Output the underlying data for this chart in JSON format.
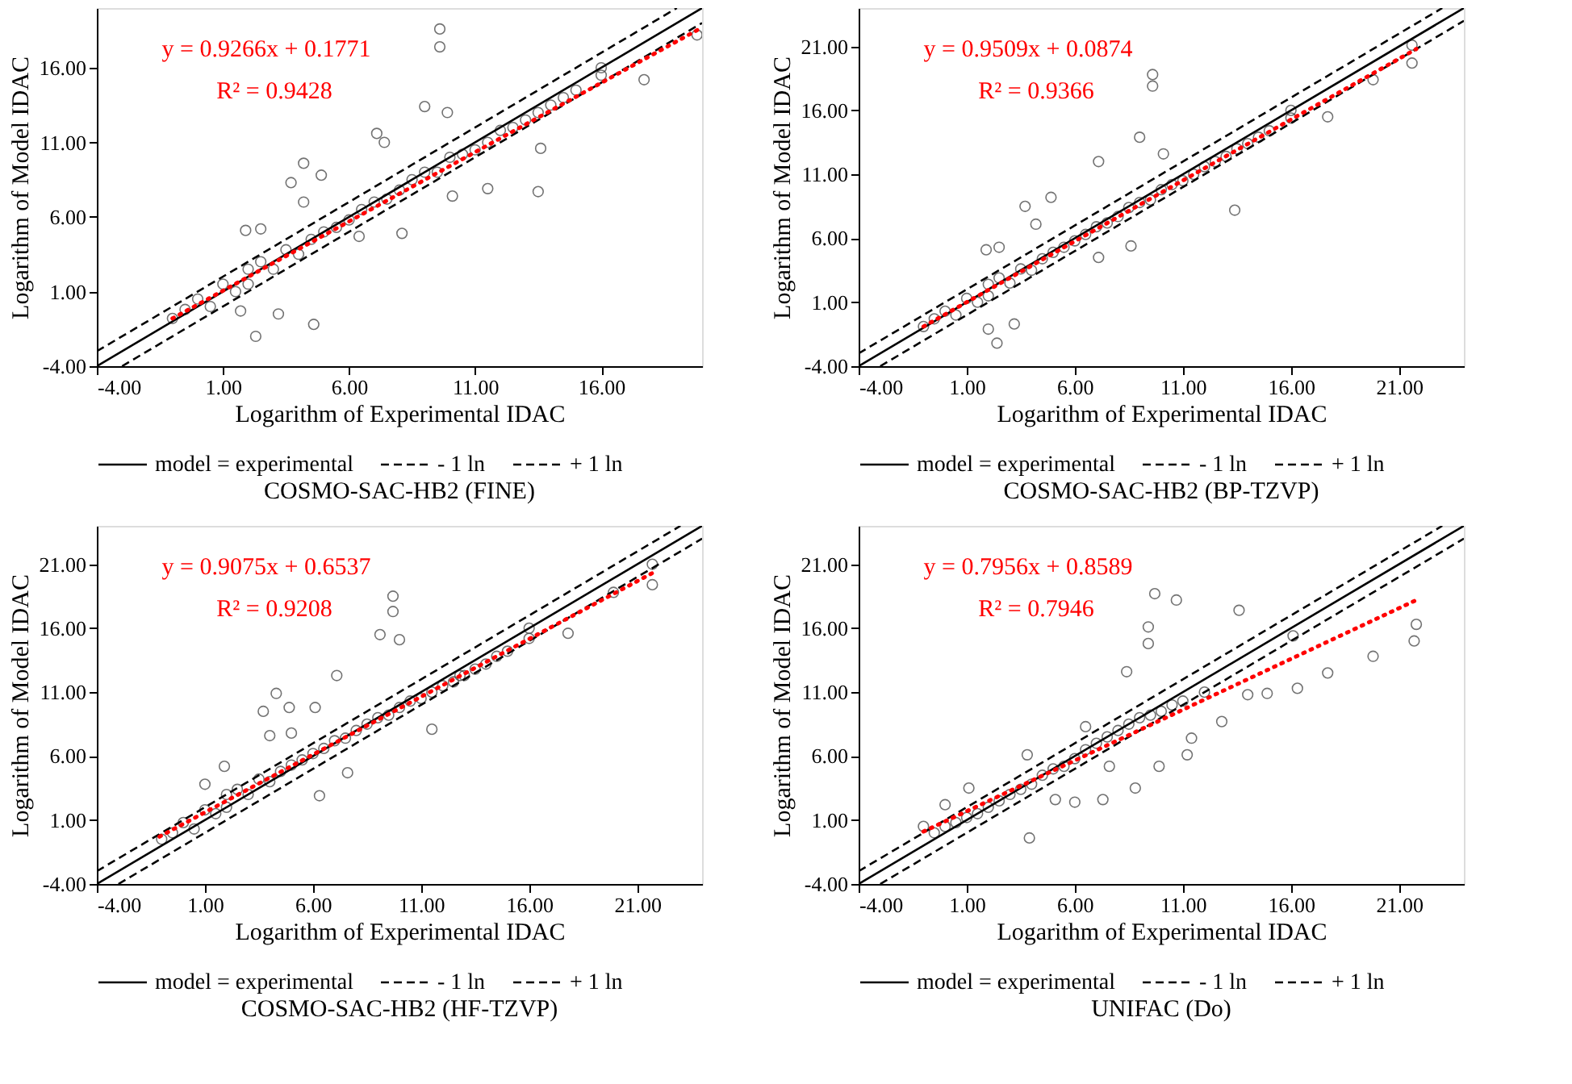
{
  "chart_data": [
    {
      "type": "scatter",
      "title": "COSMO-SAC-HB2 (FINE)",
      "xlabel": "Logarithm of Experimental IDAC",
      "ylabel": "Logarithm of Model IDAC",
      "annotations": [
        "y = 0.9266x + 0.1771",
        "R² = 0.9428"
      ],
      "legend": "bottom",
      "grid": false,
      "xlim": [
        -4,
        20
      ],
      "ylim": [
        -4,
        20
      ],
      "xticks": [
        {
          "value": -4,
          "label": "-4.00"
        },
        {
          "value": 1,
          "label": "1.00"
        },
        {
          "value": 6,
          "label": "6.00"
        },
        {
          "value": 11,
          "label": "11.00"
        },
        {
          "value": 16,
          "label": "16.00"
        }
      ],
      "yticks": [
        {
          "value": -4,
          "label": "-4.00"
        },
        {
          "value": 1,
          "label": "1.00"
        },
        {
          "value": 6,
          "label": "6.00"
        },
        {
          "value": 11,
          "label": "11.00"
        },
        {
          "value": 16,
          "label": "16.00"
        }
      ],
      "series": [
        {
          "color": "#444444",
          "marker": "circle",
          "x": [
            -1,
            -0.5,
            0,
            0.5,
            1,
            1.5,
            2,
            2,
            2.5,
            3,
            3.5,
            4,
            4.5,
            5,
            5.5,
            6,
            6.5,
            7,
            7.5,
            8,
            8.5,
            9,
            9.5,
            10,
            10.5,
            11,
            11.5,
            12,
            12.5,
            13,
            13.5,
            14,
            14.5,
            15,
            16,
            16,
            9.6,
            9.6,
            9.0,
            9.9,
            7.1,
            7.4,
            4.2,
            4.9,
            3.7,
            4.2,
            1.9,
            2.5,
            1.7,
            3.2,
            2.3,
            4.6,
            6.4,
            8.1,
            10.1,
            11.5,
            13.5,
            13.6,
            17.7,
            19.8
          ],
          "values": [
            -0.8,
            -0.2,
            0.5,
            0,
            1.5,
            1,
            2.5,
            1.5,
            3,
            2.5,
            3.8,
            3.5,
            4.5,
            5,
            5.3,
            5.8,
            6.5,
            7,
            7.2,
            7.8,
            8.5,
            9,
            9,
            10,
            10.2,
            10.5,
            11,
            11.8,
            12,
            12.5,
            13,
            13.5,
            14,
            14.5,
            15.5,
            16,
            18.6,
            17.4,
            13.4,
            13.0,
            11.6,
            11.0,
            9.6,
            8.8,
            8.3,
            7.0,
            5.1,
            5.2,
            -0.3,
            -0.5,
            -2.0,
            -1.2,
            4.7,
            4.9,
            7.4,
            7.9,
            7.7,
            10.6,
            15.2,
            18.2
          ]
        },
        {
          "type": "line",
          "name": "model = experimental",
          "color": "#000000",
          "line_style": "solid",
          "marker": "none",
          "x": [
            -4,
            20
          ],
          "values": [
            -4,
            20
          ]
        },
        {
          "type": "line",
          "name": "- 1 ln",
          "color": "#000000",
          "line_style": "dashed",
          "marker": "none",
          "x": [
            -3,
            20
          ],
          "values": [
            -4,
            19
          ]
        },
        {
          "type": "line",
          "name": "+ 1 ln",
          "color": "#000000",
          "line_style": "dashed",
          "marker": "none",
          "x": [
            -4,
            19
          ],
          "values": [
            -3,
            20
          ]
        },
        {
          "type": "line",
          "color": "#ff0000",
          "line_style": "dotted",
          "marker": "none",
          "x": [
            -1,
            20
          ],
          "values": [
            -0.8,
            18.7
          ]
        }
      ]
    },
    {
      "type": "scatter",
      "title": "COSMO-SAC-HB2 (BP-TZVP)",
      "xlabel": "Logarithm of Experimental IDAC",
      "ylabel": "Logarithm of Model IDAC",
      "annotations": [
        "y = 0.9509x + 0.0874",
        "R² = 0.9366"
      ],
      "legend": "bottom",
      "grid": false,
      "xlim": [
        -4,
        24
      ],
      "ylim": [
        -4,
        24
      ],
      "xticks": [
        {
          "value": -4,
          "label": "-4.00"
        },
        {
          "value": 1,
          "label": "1.00"
        },
        {
          "value": 6,
          "label": "6.00"
        },
        {
          "value": 11,
          "label": "11.00"
        },
        {
          "value": 16,
          "label": "16.00"
        },
        {
          "value": 21,
          "label": "21.00"
        }
      ],
      "yticks": [
        {
          "value": -4,
          "label": "-4.00"
        },
        {
          "value": 1,
          "label": "1.00"
        },
        {
          "value": 6,
          "label": "6.00"
        },
        {
          "value": 11,
          "label": "11.00"
        },
        {
          "value": 16,
          "label": "16.00"
        },
        {
          "value": 21,
          "label": "21.00"
        }
      ],
      "series": [
        {
          "color": "#444444",
          "marker": "circle",
          "x": [
            -1,
            -0.5,
            0,
            0.5,
            1,
            1.5,
            2,
            2,
            2.5,
            3,
            3.5,
            4,
            4.5,
            5,
            5.5,
            6,
            6.5,
            7,
            7.5,
            8,
            8.5,
            9,
            9.5,
            10,
            10.5,
            11,
            11.5,
            12,
            12.5,
            13,
            13.5,
            14,
            14.5,
            15,
            16,
            16,
            9.6,
            9.6,
            9.0,
            10.1,
            7.1,
            3.7,
            4.9,
            4.2,
            1.9,
            2.5,
            2.0,
            3.2,
            2.4,
            13.4,
            17.7,
            21.6,
            21.6,
            19.8,
            7.1,
            8.6
          ],
          "values": [
            -0.9,
            -0.3,
            0.3,
            0,
            1.3,
            1,
            2.4,
            1.5,
            2.9,
            2.5,
            3.6,
            3.5,
            4.4,
            4.9,
            5.3,
            5.8,
            6.3,
            6.9,
            7.2,
            7.7,
            8.4,
            8.8,
            9,
            9.8,
            10.2,
            10.5,
            11,
            11.6,
            12,
            12.4,
            13,
            13.4,
            13.9,
            14.4,
            15.4,
            16,
            18.8,
            17.9,
            13.9,
            12.6,
            12.0,
            8.5,
            9.2,
            7.1,
            5.1,
            5.3,
            -1.1,
            -0.7,
            -2.2,
            8.2,
            15.5,
            21.1,
            19.7,
            18.4,
            4.5,
            5.4
          ]
        },
        {
          "type": "line",
          "name": "model = experimental",
          "color": "#000000",
          "line_style": "solid",
          "marker": "none",
          "x": [
            -4,
            24
          ],
          "values": [
            -4,
            24
          ]
        },
        {
          "type": "line",
          "name": "- 1 ln",
          "color": "#000000",
          "line_style": "dashed",
          "marker": "none",
          "x": [
            -3,
            24
          ],
          "values": [
            -4,
            23
          ]
        },
        {
          "type": "line",
          "name": "+ 1 ln",
          "color": "#000000",
          "line_style": "dashed",
          "marker": "none",
          "x": [
            -4,
            23
          ],
          "values": [
            -3,
            24
          ]
        },
        {
          "type": "line",
          "color": "#ff0000",
          "line_style": "dotted",
          "marker": "none",
          "x": [
            -1,
            21.8
          ],
          "values": [
            -0.9,
            20.8
          ]
        }
      ]
    },
    {
      "type": "scatter",
      "title": "COSMO-SAC-HB2 (HF-TZVP)",
      "xlabel": "Logarithm of Experimental IDAC",
      "ylabel": "Logarithm of Model IDAC",
      "annotations": [
        "y = 0.9075x + 0.6537",
        "R² = 0.9208"
      ],
      "legend": "bottom",
      "grid": false,
      "xlim": [
        -4,
        24
      ],
      "ylim": [
        -4,
        24
      ],
      "xticks": [
        {
          "value": -4,
          "label": "-4.00"
        },
        {
          "value": 1,
          "label": "1.00"
        },
        {
          "value": 6,
          "label": "6.00"
        },
        {
          "value": 11,
          "label": "11.00"
        },
        {
          "value": 16,
          "label": "16.00"
        },
        {
          "value": 21,
          "label": "21.00"
        }
      ],
      "yticks": [
        {
          "value": -4,
          "label": "-4.00"
        },
        {
          "value": 1,
          "label": "1.00"
        },
        {
          "value": 6,
          "label": "6.00"
        },
        {
          "value": 11,
          "label": "11.00"
        },
        {
          "value": 16,
          "label": "16.00"
        },
        {
          "value": 21,
          "label": "21.00"
        }
      ],
      "series": [
        {
          "color": "#444444",
          "marker": "circle",
          "x": [
            -1,
            -0.5,
            0,
            0.5,
            1,
            1.5,
            2,
            2,
            2.5,
            3,
            3.5,
            4,
            4.5,
            5,
            5.5,
            6,
            6.5,
            7,
            7.5,
            8,
            8.5,
            9,
            9.5,
            10,
            10.5,
            11,
            11.5,
            12,
            12.5,
            13,
            13.5,
            14,
            14.5,
            15,
            16,
            16,
            9.7,
            9.7,
            9.1,
            10.0,
            7.1,
            4.3,
            3.7,
            4.9,
            4.0,
            5.0,
            6.1,
            6.3,
            1.0,
            1.9,
            11.5,
            17.8,
            21.7,
            21.7,
            19.9,
            12.8,
            7.6
          ],
          "values": [
            -0.5,
            0,
            0.8,
            0.3,
            1.8,
            1.5,
            3,
            2,
            3.4,
            3,
            4.2,
            4,
            4.8,
            5.3,
            5.7,
            6.2,
            6.6,
            7.2,
            7.4,
            8,
            8.5,
            9,
            9.2,
            9.8,
            10.3,
            10.5,
            11,
            11.5,
            11.8,
            12.3,
            12.8,
            13.2,
            13.8,
            14.2,
            15.2,
            16,
            18.5,
            17.3,
            15.5,
            15.1,
            12.3,
            10.9,
            9.5,
            9.8,
            7.6,
            7.8,
            9.8,
            2.9,
            3.8,
            5.2,
            8.1,
            15.6,
            19.4,
            21.0,
            18.8,
            12.3,
            4.7
          ]
        },
        {
          "type": "line",
          "name": "model = experimental",
          "color": "#000000",
          "line_style": "solid",
          "marker": "none",
          "x": [
            -4,
            24
          ],
          "values": [
            -4,
            24
          ]
        },
        {
          "type": "line",
          "name": "- 1 ln",
          "color": "#000000",
          "line_style": "dashed",
          "marker": "none",
          "x": [
            -3,
            24
          ],
          "values": [
            -4,
            23
          ]
        },
        {
          "type": "line",
          "name": "+ 1 ln",
          "color": "#000000",
          "line_style": "dashed",
          "marker": "none",
          "x": [
            -4,
            23
          ],
          "values": [
            -3,
            24
          ]
        },
        {
          "type": "line",
          "color": "#ff0000",
          "line_style": "dotted",
          "marker": "none",
          "x": [
            -1.1,
            21.8
          ],
          "values": [
            -0.3,
            20.4
          ]
        }
      ]
    },
    {
      "type": "scatter",
      "title": "UNIFAC (Do)",
      "xlabel": "Logarithm of Experimental IDAC",
      "ylabel": "Logarithm of Model IDAC",
      "annotations": [
        "y = 0.7956x + 0.8589",
        "R² = 0.7946"
      ],
      "legend": "bottom",
      "grid": false,
      "xlim": [
        -4,
        24
      ],
      "ylim": [
        -4,
        24
      ],
      "xticks": [
        {
          "value": -4,
          "label": "-4.00"
        },
        {
          "value": 1,
          "label": "1.00"
        },
        {
          "value": 6,
          "label": "6.00"
        },
        {
          "value": 11,
          "label": "11.00"
        },
        {
          "value": 16,
          "label": "16.00"
        },
        {
          "value": 21,
          "label": "21.00"
        }
      ],
      "yticks": [
        {
          "value": -4,
          "label": "-4.00"
        },
        {
          "value": 1,
          "label": "1.00"
        },
        {
          "value": 6,
          "label": "6.00"
        },
        {
          "value": 11,
          "label": "11.00"
        },
        {
          "value": 16,
          "label": "16.00"
        },
        {
          "value": 21,
          "label": "21.00"
        }
      ],
      "series": [
        {
          "color": "#444444",
          "marker": "circle",
          "x": [
            -1,
            -0.5,
            0,
            0.5,
            1,
            1.5,
            2,
            2.5,
            3,
            3.5,
            4,
            4.5,
            5,
            5.5,
            6,
            6.5,
            7,
            7.5,
            8,
            8.5,
            9,
            9.5,
            10,
            10.5,
            11,
            12,
            9.7,
            9.4,
            10.7,
            13.6,
            9.4,
            16.1,
            21.7,
            21.8,
            19.8,
            17.7,
            16.3,
            14.9,
            14.0,
            12.8,
            11.4,
            11.2,
            9.9,
            8.8,
            7.6,
            7.3,
            6.0,
            5.1,
            3.9,
            8.4,
            6.5,
            3.8,
            0.0,
            1.1
          ],
          "values": [
            0.5,
            0,
            0.5,
            0.8,
            1.2,
            1.5,
            2,
            2.5,
            3,
            3.4,
            3.8,
            4.5,
            5,
            5.2,
            5.8,
            6.5,
            7,
            7.5,
            8,
            8.5,
            9,
            9.2,
            9.5,
            10,
            10.3,
            11,
            18.7,
            16.1,
            18.2,
            17.4,
            14.8,
            15.4,
            15.0,
            16.3,
            13.8,
            12.5,
            11.3,
            10.9,
            10.8,
            8.7,
            7.4,
            6.1,
            5.2,
            3.5,
            5.2,
            2.6,
            2.4,
            2.6,
            -0.4,
            12.6,
            8.3,
            6.1,
            2.2,
            3.5
          ]
        },
        {
          "type": "line",
          "name": "model = experimental",
          "color": "#000000",
          "line_style": "solid",
          "marker": "none",
          "x": [
            -4,
            24
          ],
          "values": [
            -4,
            24
          ]
        },
        {
          "type": "line",
          "name": "- 1 ln",
          "color": "#000000",
          "line_style": "dashed",
          "marker": "none",
          "x": [
            -3,
            24
          ],
          "values": [
            -4,
            23
          ]
        },
        {
          "type": "line",
          "name": "+ 1 ln",
          "color": "#000000",
          "line_style": "dashed",
          "marker": "none",
          "x": [
            -4,
            23
          ],
          "values": [
            -3,
            24
          ]
        },
        {
          "type": "line",
          "color": "#ff0000",
          "line_style": "dotted",
          "marker": "none",
          "x": [
            -1,
            21.8
          ],
          "values": [
            0.1,
            18.2
          ]
        }
      ]
    }
  ]
}
